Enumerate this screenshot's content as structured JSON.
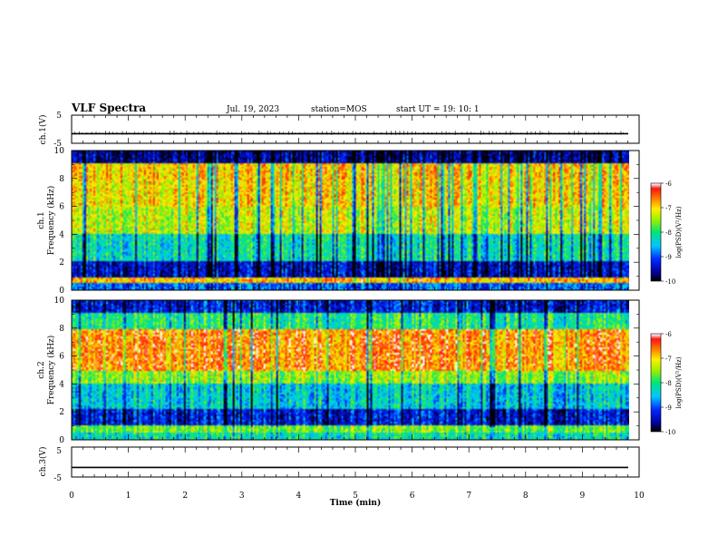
{
  "header": {
    "title": "VLF Spectra",
    "date": "Jul. 19, 2023",
    "station": "station=MOS",
    "start": "start UT = 19: 10: 1"
  },
  "chart_data": [
    {
      "type": "line",
      "panel": "ch1-voltage",
      "ylabel": "ch.1(V)",
      "ylim": [
        -5,
        5
      ],
      "yticks": [
        "5",
        "-5"
      ],
      "x": [
        0,
        10
      ],
      "series": [
        {
          "values": [
            -1.6,
            -1.6
          ]
        }
      ]
    },
    {
      "type": "heatmap",
      "panel": "ch1-spectrogram",
      "ylabel": "ch.1\nFrequency (kHz)",
      "ylim": [
        0,
        10
      ],
      "yticks": [
        "0",
        "2",
        "4",
        "6",
        "8",
        "10"
      ],
      "xlim": [
        0,
        9.83
      ],
      "colorbar": {
        "label": "log(PSD)(V²/Hz)",
        "range": [
          -10,
          -6
        ],
        "ticks": [
          "-6",
          "-7",
          "-8",
          "-9",
          "-10"
        ]
      },
      "bands": [
        {
          "from_khz": 0.0,
          "to_khz": 0.5,
          "level": -8.9
        },
        {
          "from_khz": 0.5,
          "to_khz": 0.9,
          "level": -6.8
        },
        {
          "from_khz": 0.9,
          "to_khz": 2.0,
          "level": -9.4
        },
        {
          "from_khz": 2.0,
          "to_khz": 4.0,
          "level": -8.2
        },
        {
          "from_khz": 4.0,
          "to_khz": 6.0,
          "level": -7.3
        },
        {
          "from_khz": 6.0,
          "to_khz": 8.0,
          "level": -7.0
        },
        {
          "from_khz": 8.0,
          "to_khz": 9.2,
          "level": -6.9
        },
        {
          "from_khz": 9.2,
          "to_khz": 10.0,
          "level": -9.6
        }
      ]
    },
    {
      "type": "heatmap",
      "panel": "ch2-spectrogram",
      "ylabel": "ch.2\nFrequency (kHz)",
      "ylim": [
        0,
        10
      ],
      "yticks": [
        "0",
        "2",
        "4",
        "6",
        "8",
        "10"
      ],
      "xlim": [
        0,
        9.83
      ],
      "colorbar": {
        "label": "log(PSD)(V²/Hz)",
        "range": [
          -10,
          -6
        ],
        "ticks": [
          "-6",
          "-7",
          "-8",
          "-9",
          "-10"
        ]
      },
      "bands": [
        {
          "from_khz": 0.0,
          "to_khz": 0.5,
          "level": -8.2
        },
        {
          "from_khz": 0.5,
          "to_khz": 1.0,
          "level": -7.6
        },
        {
          "from_khz": 1.0,
          "to_khz": 2.2,
          "level": -9.3
        },
        {
          "from_khz": 2.2,
          "to_khz": 4.0,
          "level": -8.4
        },
        {
          "from_khz": 4.0,
          "to_khz": 5.0,
          "level": -7.5
        },
        {
          "from_khz": 5.0,
          "to_khz": 8.0,
          "level": -6.6
        },
        {
          "from_khz": 8.0,
          "to_khz": 9.2,
          "level": -8.0
        },
        {
          "from_khz": 9.2,
          "to_khz": 10.0,
          "level": -9.3
        }
      ]
    },
    {
      "type": "line",
      "panel": "ch3-voltage",
      "ylabel": "ch.3(V)",
      "ylim": [
        -5,
        5
      ],
      "yticks": [
        "5",
        "-5"
      ],
      "x": [
        0,
        10
      ],
      "series": [
        {
          "values": [
            -1.8,
            -1.8
          ]
        }
      ]
    }
  ],
  "xaxis": {
    "label": "Time (min)",
    "ticks": [
      "0",
      "1",
      "2",
      "3",
      "4",
      "5",
      "6",
      "7",
      "8",
      "9",
      "10"
    ],
    "xlim": [
      0,
      10
    ]
  }
}
